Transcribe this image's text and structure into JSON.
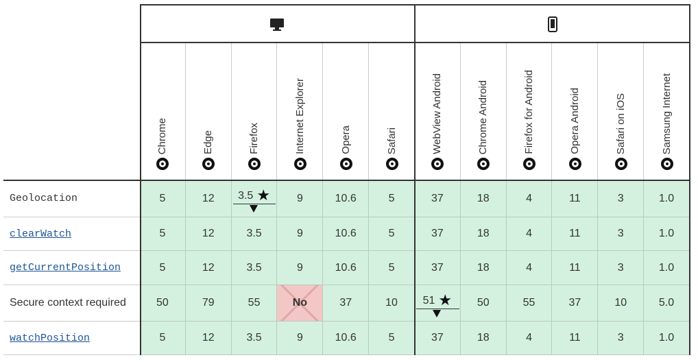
{
  "table": {
    "browsers": [
      "Chrome",
      "Edge",
      "Firefox",
      "Internet Explorer",
      "Opera",
      "Safari",
      "WebView Android",
      "Chrome Android",
      "Firefox for Android",
      "Opera Android",
      "Safari on iOS",
      "Samsung Internet"
    ],
    "rows": [
      {
        "feature": "Geolocation",
        "style": "code",
        "cells": [
          "5",
          "12",
          {
            "text": "3.5",
            "note": true
          },
          "9",
          "10.6",
          "5",
          "37",
          "18",
          "4",
          "11",
          "3",
          "1.0"
        ]
      },
      {
        "feature": "clearWatch",
        "style": "link",
        "cells": [
          "5",
          "12",
          "3.5",
          "9",
          "10.6",
          "5",
          "37",
          "18",
          "4",
          "11",
          "3",
          "1.0"
        ]
      },
      {
        "feature": "getCurrentPosition",
        "style": "link",
        "cells": [
          "5",
          "12",
          "3.5",
          "9",
          "10.6",
          "5",
          "37",
          "18",
          "4",
          "11",
          "3",
          "1.0"
        ]
      },
      {
        "feature": "Secure context required",
        "style": "text",
        "cells": [
          "50",
          "79",
          "55",
          {
            "text": "No",
            "supported": false
          },
          "37",
          "10",
          {
            "text": "51",
            "note": true
          },
          "50",
          "55",
          "37",
          "10",
          "5.0"
        ]
      },
      {
        "feature": "watchPosition",
        "style": "link",
        "cells": [
          "5",
          "12",
          "3.5",
          "9",
          "10.6",
          "5",
          "37",
          "18",
          "4",
          "11",
          "3",
          "1.0"
        ]
      }
    ]
  }
}
